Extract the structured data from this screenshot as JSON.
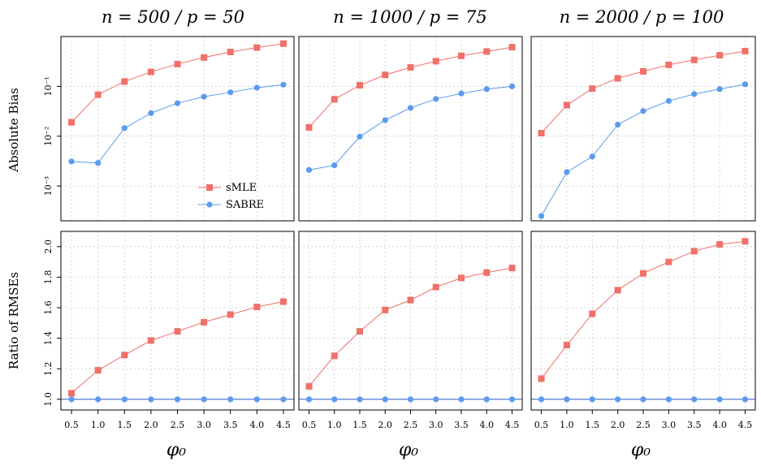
{
  "colors": {
    "smle": "#F0706A",
    "sabre": "#5B9BEF",
    "grid": "#c8c8c8",
    "ref_line": "#3a6fd0"
  },
  "panels": [
    {
      "title": "n = 500 / p = 50"
    },
    {
      "title": "n = 1000 / p = 75"
    },
    {
      "title": "n = 2000 / p = 100"
    }
  ],
  "rows": [
    {
      "ylabel": "Absolute Bias"
    },
    {
      "ylabel": "Ratio of RMSEs"
    }
  ],
  "xlabel": "φ₀",
  "legend": {
    "items": [
      "sMLE",
      "SABRE"
    ],
    "placement": "bottom-right of first top panel"
  },
  "chart_data": [
    {
      "type": "line",
      "row": "top",
      "panel": "n = 500 / p = 50",
      "ylabel": "Absolute Bias",
      "yscale": "log",
      "ylim": [
        0.0002,
        1.0
      ],
      "yticks": [
        0.001,
        0.01,
        0.1
      ],
      "ytick_labels": [
        "10⁻³",
        "10⁻²",
        "10⁻¹"
      ],
      "x": [
        0.5,
        1.0,
        1.5,
        2.0,
        2.5,
        3.0,
        3.5,
        4.0,
        4.5
      ],
      "series": [
        {
          "name": "sMLE",
          "values": [
            0.019,
            0.068,
            0.125,
            0.195,
            0.28,
            0.38,
            0.49,
            0.6,
            0.72
          ]
        },
        {
          "name": "SABRE",
          "values": [
            0.0031,
            0.0029,
            0.0145,
            0.029,
            0.046,
            0.062,
            0.076,
            0.094,
            0.108
          ]
        }
      ],
      "grid": true
    },
    {
      "type": "line",
      "row": "top",
      "panel": "n = 1000 / p = 75",
      "yscale": "log",
      "ylim": [
        0.0002,
        1.0
      ],
      "x": [
        0.5,
        1.0,
        1.5,
        2.0,
        2.5,
        3.0,
        3.5,
        4.0,
        4.5
      ],
      "series": [
        {
          "name": "sMLE",
          "values": [
            0.015,
            0.055,
            0.105,
            0.17,
            0.24,
            0.32,
            0.41,
            0.5,
            0.61
          ]
        },
        {
          "name": "SABRE",
          "values": [
            0.0021,
            0.0026,
            0.0098,
            0.021,
            0.037,
            0.056,
            0.072,
            0.088,
            0.1
          ]
        }
      ],
      "grid": true
    },
    {
      "type": "line",
      "row": "top",
      "panel": "n = 2000 / p = 100",
      "yscale": "log",
      "ylim": [
        0.0002,
        1.0
      ],
      "x": [
        0.5,
        1.0,
        1.5,
        2.0,
        2.5,
        3.0,
        3.5,
        4.0,
        4.5
      ],
      "series": [
        {
          "name": "sMLE",
          "values": [
            0.0115,
            0.042,
            0.09,
            0.145,
            0.2,
            0.27,
            0.34,
            0.42,
            0.51
          ]
        },
        {
          "name": "SABRE",
          "values": [
            0.00025,
            0.0019,
            0.0039,
            0.017,
            0.032,
            0.051,
            0.07,
            0.088,
            0.11
          ]
        }
      ],
      "grid": true
    },
    {
      "type": "line",
      "row": "bottom",
      "panel": "n = 500 / p = 50",
      "ylabel": "Ratio of RMSEs",
      "ylim": [
        0.93,
        2.1
      ],
      "yticks": [
        1.0,
        1.2,
        1.4,
        1.6,
        1.8,
        2.0
      ],
      "ytick_labels": [
        "1.0",
        "1.2",
        "1.4",
        "1.6",
        "1.8",
        "2.0"
      ],
      "x": [
        0.5,
        1.0,
        1.5,
        2.0,
        2.5,
        3.0,
        3.5,
        4.0,
        4.5
      ],
      "series": [
        {
          "name": "sMLE",
          "values": [
            1.04,
            1.19,
            1.29,
            1.385,
            1.445,
            1.505,
            1.555,
            1.605,
            1.64
          ]
        },
        {
          "name": "SABRE",
          "values": [
            1,
            1,
            1,
            1,
            1,
            1,
            1,
            1,
            1
          ]
        }
      ],
      "grid": true
    },
    {
      "type": "line",
      "row": "bottom",
      "panel": "n = 1000 / p = 75",
      "ylim": [
        0.93,
        2.1
      ],
      "x": [
        0.5,
        1.0,
        1.5,
        2.0,
        2.5,
        3.0,
        3.5,
        4.0,
        4.5
      ],
      "series": [
        {
          "name": "sMLE",
          "values": [
            1.085,
            1.285,
            1.445,
            1.585,
            1.65,
            1.735,
            1.795,
            1.83,
            1.86
          ]
        },
        {
          "name": "SABRE",
          "values": [
            1,
            1,
            1,
            1,
            1,
            1,
            1,
            1,
            1
          ]
        }
      ],
      "grid": true
    },
    {
      "type": "line",
      "row": "bottom",
      "panel": "n = 2000 / p = 100",
      "ylim": [
        0.93,
        2.1
      ],
      "x": [
        0.5,
        1.0,
        1.5,
        2.0,
        2.5,
        3.0,
        3.5,
        4.0,
        4.5
      ],
      "series": [
        {
          "name": "sMLE",
          "values": [
            1.135,
            1.355,
            1.56,
            1.715,
            1.825,
            1.9,
            1.97,
            2.015,
            2.035
          ]
        },
        {
          "name": "SABRE",
          "values": [
            1,
            1,
            1,
            1,
            1,
            1,
            1,
            1,
            1
          ]
        }
      ],
      "grid": true
    }
  ],
  "x_tick_labels": [
    "0.5",
    "1.0",
    "1.5",
    "2.0",
    "2.5",
    "3.0",
    "3.5",
    "4.0",
    "4.5"
  ]
}
